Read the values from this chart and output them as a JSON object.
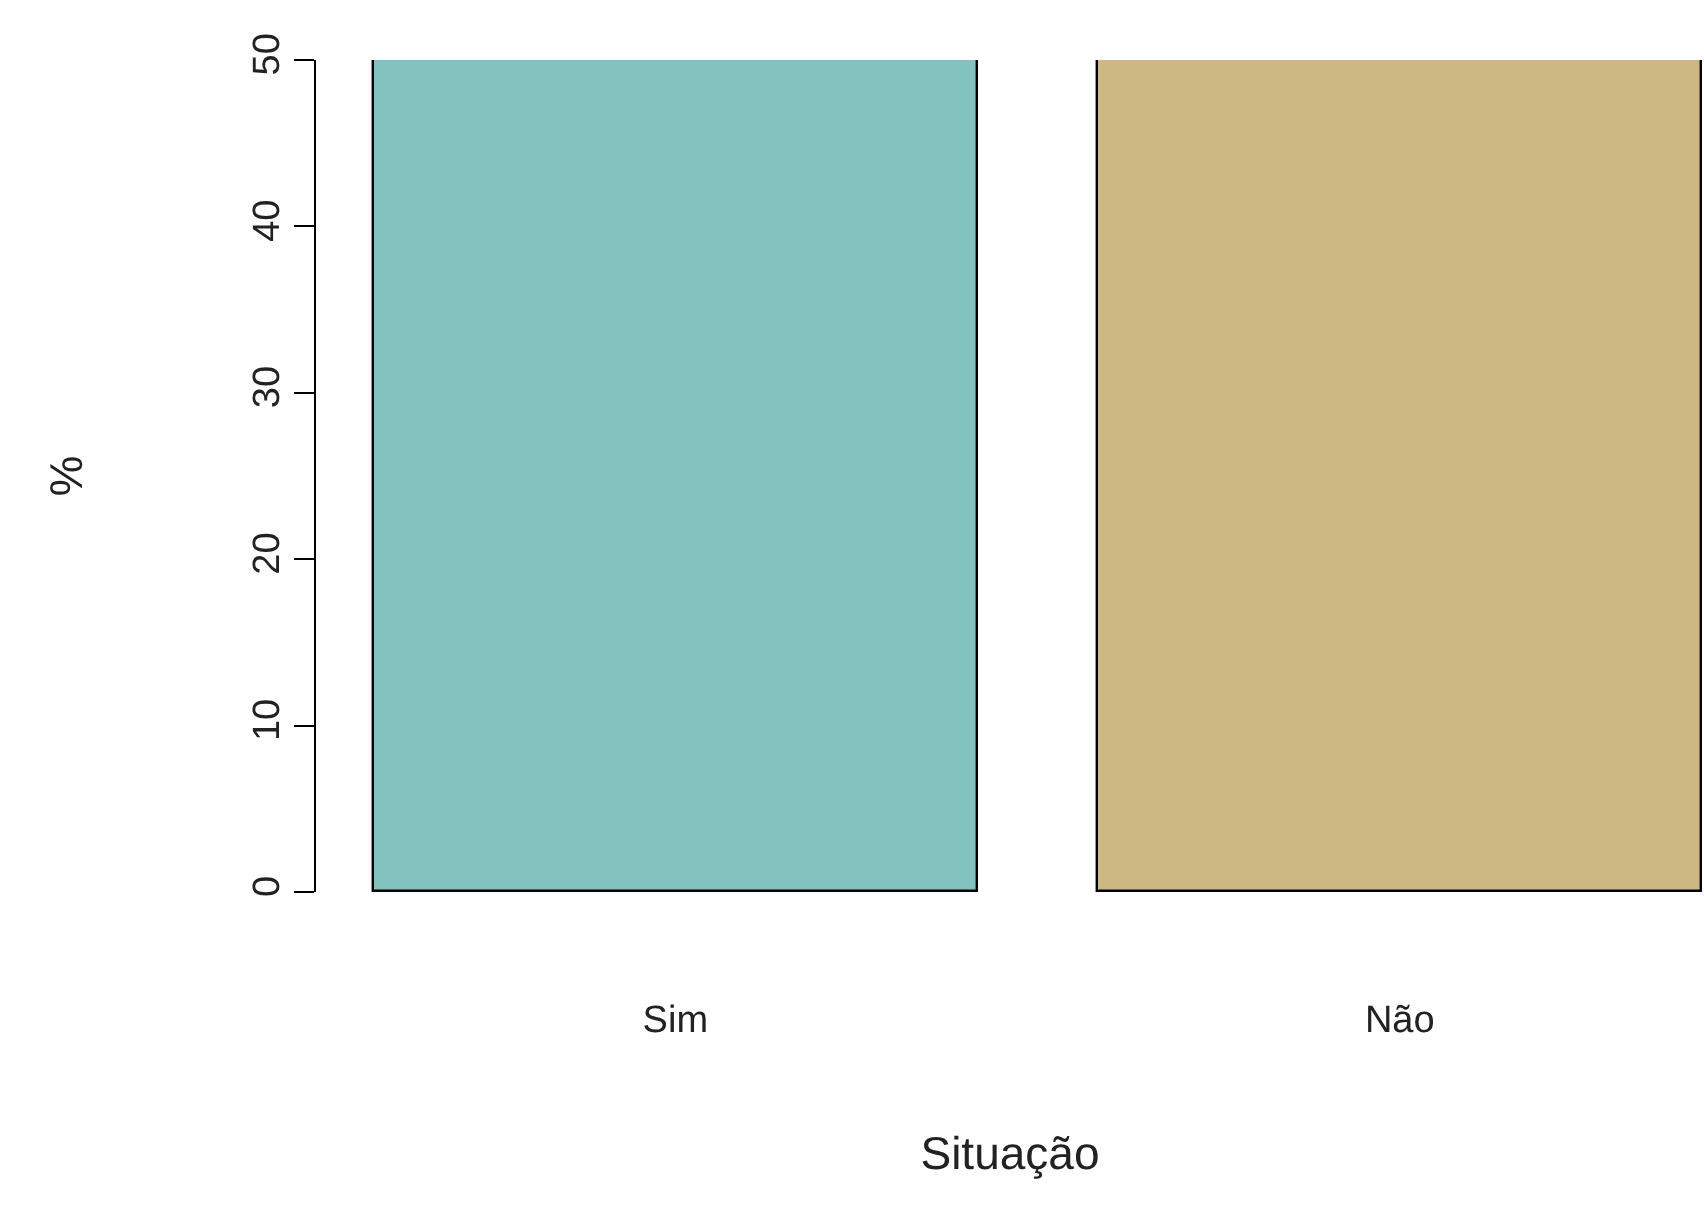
{
  "chart_data": {
    "type": "bar",
    "xlabel": "Situação",
    "ylabel": "%",
    "categories": [
      "Sim",
      "Não"
    ],
    "values": [
      50,
      50
    ],
    "colors": [
      "#82c2bf",
      "#cdb884"
    ],
    "ylim": [
      0,
      50
    ],
    "yticks": [
      0,
      10,
      20,
      30,
      40,
      50
    ]
  }
}
